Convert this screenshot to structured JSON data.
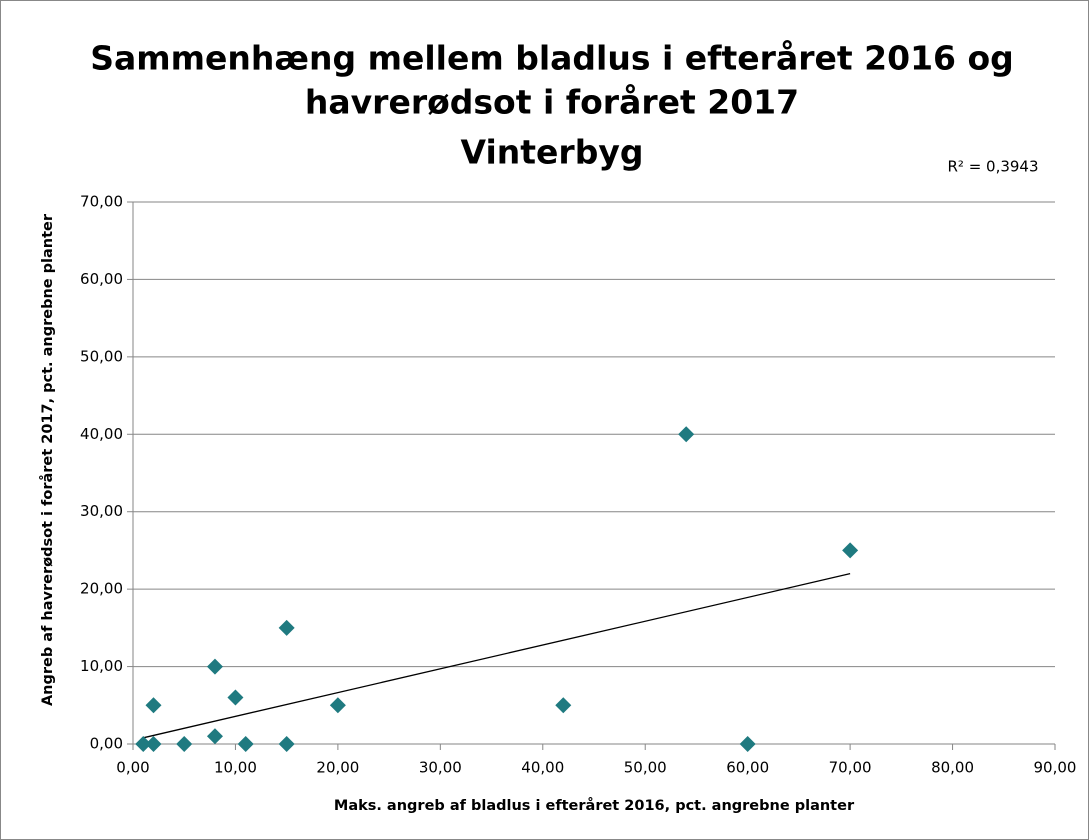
{
  "chart_data": {
    "type": "scatter",
    "title": [
      "Sammenhæng mellem bladlus i efteråret 2016 og",
      "havrerødsot i foråret 2017",
      "Vinterbyg"
    ],
    "annotation": "R² = 0,3943",
    "x_label": "Maks. angreb af bladlus i efteråret 2016, pct. angrebne planter",
    "y_label": "Angreb af havrerødsot i foråret 2017, pct. angrebne planter",
    "x": [
      1,
      2,
      2,
      5,
      8,
      8,
      10,
      11,
      15,
      15,
      20,
      42,
      54,
      60,
      70
    ],
    "values": [
      0,
      0,
      5,
      0,
      1,
      10,
      6,
      0,
      15,
      0,
      5,
      5,
      40,
      0,
      25
    ],
    "color": "#1f7a80",
    "trendline": {
      "x": [
        1,
        70
      ],
      "y": [
        0.8,
        22
      ]
    },
    "xlim": [
      0,
      90
    ],
    "ylim": [
      0,
      70
    ],
    "xticks": [
      {
        "value": 0,
        "label": "0,00"
      },
      {
        "value": 10,
        "label": "10,00"
      },
      {
        "value": 20,
        "label": "20,00"
      },
      {
        "value": 30,
        "label": "30,00"
      },
      {
        "value": 40,
        "label": "40,00"
      },
      {
        "value": 50,
        "label": "50,00"
      },
      {
        "value": 60,
        "label": "60,00"
      },
      {
        "value": 70,
        "label": "70,00"
      },
      {
        "value": 80,
        "label": "80,00"
      },
      {
        "value": 90,
        "label": "90,00"
      }
    ],
    "yticks": [
      {
        "value": 0,
        "label": "0,00"
      },
      {
        "value": 10,
        "label": "10,00"
      },
      {
        "value": 20,
        "label": "20,00"
      },
      {
        "value": 30,
        "label": "30,00"
      },
      {
        "value": 40,
        "label": "40,00"
      },
      {
        "value": 50,
        "label": "50,00"
      },
      {
        "value": 60,
        "label": "60,00"
      },
      {
        "value": 70,
        "label": "70,00"
      }
    ],
    "grid": true
  }
}
